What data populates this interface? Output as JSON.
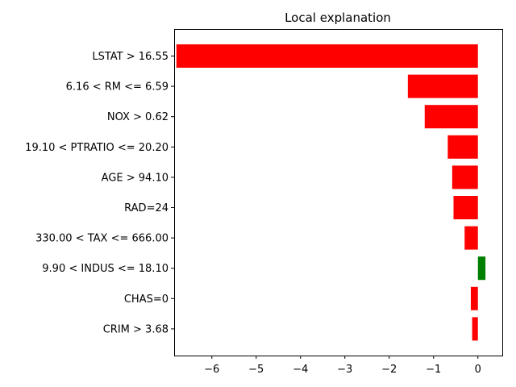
{
  "chart_data": {
    "type": "bar",
    "orientation": "horizontal",
    "title": "Local explanation",
    "xlabel": "",
    "ylabel": "",
    "categories": [
      "LSTAT > 16.55",
      "6.16 < RM <= 6.59",
      "NOX > 0.62",
      "19.10 < PTRATIO <= 20.20",
      "AGE > 94.10",
      "RAD=24",
      "330.00 < TAX <= 666.00",
      "9.90 < INDUS <= 18.10",
      "CHAS=0",
      "CRIM > 3.68"
    ],
    "values": [
      -6.8,
      -1.58,
      -1.2,
      -0.68,
      -0.58,
      -0.55,
      -0.3,
      0.17,
      -0.16,
      -0.13
    ],
    "xlim": [
      -6.85,
      0.55
    ],
    "xticks": [
      -6,
      -5,
      -4,
      -3,
      -2,
      -1,
      0
    ],
    "xtick_labels": [
      "−6",
      "−5",
      "−4",
      "−3",
      "−2",
      "−1",
      "0"
    ],
    "grid": false,
    "colors": {
      "positive": "#008000",
      "negative": "#ff0000"
    }
  }
}
